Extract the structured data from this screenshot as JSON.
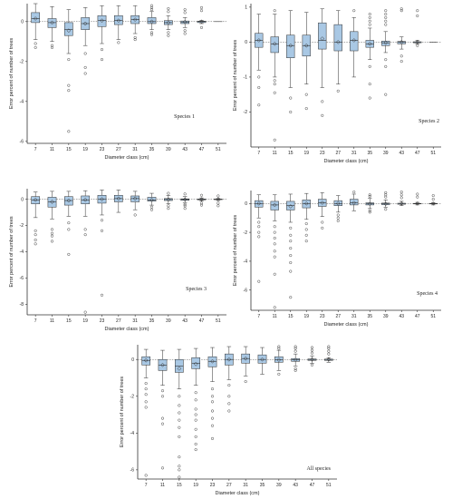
{
  "colors": {
    "box_fill": "#a9c8e4",
    "stroke": "#2f2f2f",
    "background": "#ffffff"
  },
  "chart_data": [
    {
      "type": "box",
      "label": "Species 1",
      "xlabel": "Diameter class (cm)",
      "ylabel": "Error percent of number of trees",
      "categories": [
        "7",
        "11",
        "15",
        "19",
        "23",
        "27",
        "31",
        "35",
        "39",
        "43",
        "47",
        "51"
      ],
      "x_ticks": [
        "7",
        "11",
        "15",
        "19",
        "23",
        "27",
        "31",
        "35",
        "39",
        "43",
        "47",
        "51"
      ],
      "y_ticks": [
        -6,
        -4,
        -2,
        0
      ],
      "ylim": [
        -6.1,
        0.9
      ],
      "boxes": [
        {
          "cat": "7",
          "q1": -0.05,
          "med": 0.15,
          "q3": 0.45,
          "lo": -0.9,
          "hi": 0.9,
          "mean": 0.15,
          "out": [
            -1.1,
            -1.3
          ]
        },
        {
          "cat": "11",
          "q1": -0.3,
          "med": -0.05,
          "q3": 0.15,
          "lo": -1.0,
          "hi": 0.75,
          "mean": -0.05,
          "out": [
            -1.2,
            -1.3
          ]
        },
        {
          "cat": "15",
          "q1": -0.7,
          "med": -0.4,
          "q3": -0.05,
          "lo": -1.6,
          "hi": 0.6,
          "mean": -0.45,
          "out": [
            -1.9,
            -3.2,
            -3.45,
            -5.5
          ]
        },
        {
          "cat": "19",
          "q1": -0.4,
          "med": -0.1,
          "q3": 0.2,
          "lo": -1.2,
          "hi": 0.7,
          "mean": -0.1,
          "out": [
            -1.6,
            -2.3,
            -2.6
          ]
        },
        {
          "cat": "23",
          "q1": -0.25,
          "med": 0.05,
          "q3": 0.3,
          "lo": -1.1,
          "hi": 0.8,
          "mean": 0.05,
          "out": [
            -1.4,
            -1.9
          ]
        },
        {
          "cat": "27",
          "q1": -0.15,
          "med": 0.05,
          "q3": 0.3,
          "lo": -0.9,
          "hi": 0.8,
          "mean": 0.05,
          "out": [
            -1.05
          ]
        },
        {
          "cat": "31",
          "q1": -0.1,
          "med": 0.1,
          "q3": 0.3,
          "lo": -0.6,
          "hi": 0.8,
          "mean": 0.1,
          "out": [
            -0.8,
            -0.9
          ]
        },
        {
          "cat": "35",
          "q1": -0.1,
          "med": 0.0,
          "q3": 0.2,
          "lo": -0.4,
          "hi": 0.5,
          "mean": 0.0,
          "out": [
            0.6,
            0.7,
            0.8,
            -0.55,
            -0.65
          ]
        },
        {
          "cat": "39",
          "q1": -0.15,
          "med": -0.05,
          "q3": 0.05,
          "lo": -0.4,
          "hi": 0.3,
          "mean": -0.05,
          "out": [
            0.5,
            0.65,
            -0.55,
            -0.7
          ]
        },
        {
          "cat": "43",
          "q1": -0.1,
          "med": -0.02,
          "q3": 0.03,
          "lo": -0.3,
          "hi": 0.2,
          "mean": -0.02,
          "out": [
            0.45,
            0.6,
            -0.45,
            -0.6
          ]
        },
        {
          "cat": "47",
          "q1": -0.05,
          "med": 0.0,
          "q3": 0.02,
          "lo": -0.1,
          "hi": 0.05,
          "mean": 0.0,
          "out": [
            0.55,
            0.7,
            -0.3
          ]
        },
        {
          "cat": "51",
          "q1": 0,
          "med": 0,
          "q3": 0,
          "lo": 0,
          "hi": 0,
          "mean": 0,
          "out": []
        }
      ]
    },
    {
      "type": "box",
      "label": "Species 2",
      "xlabel": "Diameter class (cm)",
      "ylabel": "Error percent of number of trees",
      "categories": [
        "7",
        "11",
        "15",
        "19",
        "23",
        "27",
        "31",
        "35",
        "39",
        "43",
        "47",
        "51"
      ],
      "x_ticks": [
        "7",
        "11",
        "15",
        "19",
        "23",
        "27",
        "31",
        "35",
        "39",
        "43",
        "47",
        "51"
      ],
      "y_ticks": [
        -2,
        -1,
        0,
        1
      ],
      "ylim": [
        -3.0,
        1.1
      ],
      "boxes": [
        {
          "cat": "7",
          "q1": -0.15,
          "med": 0.05,
          "q3": 0.25,
          "lo": -0.8,
          "hi": 0.8,
          "mean": 0.05,
          "out": [
            -1.0,
            -1.3,
            -1.8
          ]
        },
        {
          "cat": "11",
          "q1": -0.3,
          "med": -0.05,
          "q3": 0.15,
          "lo": -1.0,
          "hi": 0.8,
          "mean": -0.05,
          "out": [
            -1.1,
            -1.2,
            -1.45,
            0.9,
            -2.8
          ]
        },
        {
          "cat": "15",
          "q1": -0.45,
          "med": -0.1,
          "q3": 0.2,
          "lo": -1.3,
          "hi": 0.9,
          "mean": -0.1,
          "out": [
            -1.6,
            -2.0
          ]
        },
        {
          "cat": "19",
          "q1": -0.4,
          "med": -0.1,
          "q3": 0.2,
          "lo": -1.2,
          "hi": 0.85,
          "mean": -0.1,
          "out": [
            -1.5,
            -1.9
          ]
        },
        {
          "cat": "23",
          "q1": -0.2,
          "med": 0.05,
          "q3": 0.55,
          "lo": -1.3,
          "hi": 0.95,
          "mean": 0.1,
          "out": [
            -1.7,
            -2.1
          ]
        },
        {
          "cat": "27",
          "q1": -0.25,
          "med": 0.0,
          "q3": 0.5,
          "lo": -1.2,
          "hi": 0.9,
          "mean": 0.0,
          "out": [
            -1.4
          ]
        },
        {
          "cat": "31",
          "q1": -0.25,
          "med": 0.05,
          "q3": 0.3,
          "lo": -1.0,
          "hi": 0.7,
          "mean": 0.05,
          "out": [
            0.9
          ]
        },
        {
          "cat": "35",
          "q1": -0.15,
          "med": -0.05,
          "q3": 0.05,
          "lo": -0.5,
          "hi": 0.4,
          "mean": -0.05,
          "out": [
            0.5,
            0.6,
            0.7,
            0.8,
            -0.7,
            -1.2,
            -1.6
          ]
        },
        {
          "cat": "39",
          "q1": -0.1,
          "med": -0.02,
          "q3": 0.03,
          "lo": -0.3,
          "hi": 0.3,
          "mean": -0.02,
          "out": [
            0.5,
            0.6,
            0.7,
            0.8,
            0.9,
            -0.5,
            -0.7,
            -1.5
          ]
        },
        {
          "cat": "43",
          "q1": -0.05,
          "med": 0.0,
          "q3": 0.02,
          "lo": -0.2,
          "hi": 0.15,
          "mean": 0.0,
          "out": [
            0.9,
            0.95,
            -0.4,
            -0.55
          ]
        },
        {
          "cat": "47",
          "q1": -0.02,
          "med": 0.0,
          "q3": 0.01,
          "lo": -0.05,
          "hi": 0.05,
          "mean": 0.0,
          "out": [
            0.75,
            0.9,
            -0.1
          ]
        },
        {
          "cat": "51",
          "q1": 0,
          "med": 0,
          "q3": 0,
          "lo": 0,
          "hi": 0,
          "mean": 0,
          "out": []
        }
      ]
    },
    {
      "type": "box",
      "label": "Species 3",
      "xlabel": "Diameter class (cm)",
      "ylabel": "Error percent of number of trees",
      "categories": [
        "7",
        "11",
        "15",
        "19",
        "23",
        "27",
        "31",
        "35",
        "39",
        "43",
        "47",
        "51"
      ],
      "x_ticks": [
        "7",
        "11",
        "15",
        "19",
        "23",
        "27",
        "31",
        "35",
        "39",
        "43",
        "47",
        "51"
      ],
      "y_ticks": [
        -8,
        -6,
        -4,
        -2,
        0
      ],
      "ylim": [
        -8.8,
        0.8
      ],
      "boxes": [
        {
          "cat": "7",
          "q1": -0.35,
          "med": -0.05,
          "q3": 0.2,
          "lo": -1.4,
          "hi": 0.55,
          "mean": -0.05,
          "out": [
            -2.4,
            -2.7,
            -3.1,
            -3.4
          ]
        },
        {
          "cat": "11",
          "q1": -0.6,
          "med": -0.2,
          "q3": 0.15,
          "lo": -1.5,
          "hi": 0.6,
          "mean": -0.2,
          "out": [
            -2.3,
            -2.6,
            -2.8,
            -3.2
          ]
        },
        {
          "cat": "15",
          "q1": -0.45,
          "med": -0.1,
          "q3": 0.2,
          "lo": -1.3,
          "hi": 0.6,
          "mean": -0.1,
          "out": [
            -1.8,
            -2.3,
            -4.2
          ]
        },
        {
          "cat": "19",
          "q1": -0.35,
          "med": -0.05,
          "q3": 0.25,
          "lo": -1.3,
          "hi": 0.65,
          "mean": -0.05,
          "out": [
            -2.3,
            -2.7,
            -8.6
          ]
        },
        {
          "cat": "23",
          "q1": -0.3,
          "med": 0.0,
          "q3": 0.3,
          "lo": -1.2,
          "hi": 0.7,
          "mean": 0.0,
          "out": [
            -1.6,
            -2.4,
            -7.3
          ]
        },
        {
          "cat": "27",
          "q1": -0.2,
          "med": 0.05,
          "q3": 0.3,
          "lo": -1.0,
          "hi": 0.7,
          "mean": 0.05,
          "out": []
        },
        {
          "cat": "31",
          "q1": -0.2,
          "med": 0.05,
          "q3": 0.25,
          "lo": -0.8,
          "hi": 0.6,
          "mean": 0.05,
          "out": [
            -1.2
          ]
        },
        {
          "cat": "35",
          "q1": -0.15,
          "med": -0.05,
          "q3": 0.15,
          "lo": -0.45,
          "hi": 0.45,
          "mean": -0.05,
          "out": [
            -0.6,
            -0.8
          ]
        },
        {
          "cat": "39",
          "q1": -0.1,
          "med": -0.02,
          "q3": 0.05,
          "lo": -0.35,
          "hi": 0.3,
          "mean": -0.02,
          "out": [
            -0.5,
            -0.7,
            0.45
          ]
        },
        {
          "cat": "43",
          "q1": -0.08,
          "med": -0.02,
          "q3": 0.03,
          "lo": -0.25,
          "hi": 0.2,
          "mean": -0.02,
          "out": [
            -0.4,
            -0.5,
            -0.7,
            0.4
          ]
        },
        {
          "cat": "47",
          "q1": -0.05,
          "med": 0.0,
          "q3": 0.02,
          "lo": -0.15,
          "hi": 0.1,
          "mean": 0.0,
          "out": [
            -0.3,
            -0.45,
            0.3
          ]
        },
        {
          "cat": "51",
          "q1": -0.03,
          "med": 0.0,
          "q3": 0.01,
          "lo": -0.1,
          "hi": 0.05,
          "mean": 0.0,
          "out": [
            -0.3,
            -0.5,
            0.25
          ]
        }
      ]
    },
    {
      "type": "box",
      "label": "Species 4",
      "xlabel": "Diameter class (cm)",
      "ylabel": "Error percent of number of trees",
      "categories": [
        "7",
        "11",
        "15",
        "19",
        "23",
        "27",
        "31",
        "35",
        "39",
        "43",
        "47",
        "51"
      ],
      "x_ticks": [
        "7",
        "11",
        "15",
        "19",
        "23",
        "27",
        "31",
        "35",
        "39",
        "43",
        "47",
        "51"
      ],
      "y_ticks": [
        -6,
        -4,
        -2,
        0
      ],
      "ylim": [
        -7.4,
        0.9
      ],
      "boxes": [
        {
          "cat": "7",
          "q1": -0.25,
          "med": 0.0,
          "q3": 0.2,
          "lo": -1.0,
          "hi": 0.6,
          "mean": 0.0,
          "out": [
            -1.3,
            -1.6,
            -2.0,
            -2.3,
            -5.4
          ]
        },
        {
          "cat": "11",
          "q1": -0.45,
          "med": -0.1,
          "q3": 0.15,
          "lo": -1.2,
          "hi": 0.6,
          "mean": -0.1,
          "out": [
            -1.6,
            -2.0,
            -2.4,
            -2.8,
            -3.3,
            -3.7,
            -4.9,
            -7.2
          ]
        },
        {
          "cat": "15",
          "q1": -0.45,
          "med": -0.15,
          "q3": 0.15,
          "lo": -1.3,
          "hi": 0.65,
          "mean": -0.2,
          "out": [
            -1.7,
            -2.2,
            -2.6,
            -3.1,
            -3.6,
            -4.1,
            -4.7,
            -6.5
          ]
        },
        {
          "cat": "19",
          "q1": -0.3,
          "med": 0.0,
          "q3": 0.25,
          "lo": -1.1,
          "hi": 0.7,
          "mean": 0.0,
          "out": [
            -1.4,
            -1.8,
            -2.2,
            -2.6
          ]
        },
        {
          "cat": "23",
          "q1": -0.2,
          "med": 0.05,
          "q3": 0.3,
          "lo": -0.9,
          "hi": 0.75,
          "mean": 0.05,
          "out": [
            -1.3,
            -1.7
          ]
        },
        {
          "cat": "27",
          "q1": -0.15,
          "med": 0.0,
          "q3": 0.2,
          "lo": -0.6,
          "hi": 0.55,
          "mean": 0.0,
          "out": [
            -0.8,
            -1.0,
            -1.2
          ]
        },
        {
          "cat": "31",
          "q1": -0.1,
          "med": 0.05,
          "q3": 0.3,
          "lo": -0.5,
          "hi": 0.65,
          "mean": 0.05,
          "out": [
            0.8
          ]
        },
        {
          "cat": "35",
          "q1": -0.1,
          "med": -0.02,
          "q3": 0.05,
          "lo": -0.35,
          "hi": 0.35,
          "mean": -0.02,
          "out": [
            0.5,
            0.6,
            -0.5,
            -0.6
          ]
        },
        {
          "cat": "39",
          "q1": -0.08,
          "med": -0.02,
          "q3": 0.03,
          "lo": -0.25,
          "hi": 0.25,
          "mean": -0.02,
          "out": [
            0.45,
            0.6,
            0.75,
            -0.4
          ]
        },
        {
          "cat": "43",
          "q1": -0.05,
          "med": 0.0,
          "q3": 0.02,
          "lo": -0.15,
          "hi": 0.15,
          "mean": 0.0,
          "out": [
            0.4,
            0.6,
            0.8
          ]
        },
        {
          "cat": "47",
          "q1": -0.03,
          "med": 0.0,
          "q3": 0.01,
          "lo": -0.1,
          "hi": 0.08,
          "mean": 0.0,
          "out": [
            0.45,
            0.65
          ]
        },
        {
          "cat": "51",
          "q1": -0.03,
          "med": 0.0,
          "q3": 0.01,
          "lo": -0.1,
          "hi": 0.05,
          "mean": 0.0,
          "out": [
            0.3,
            0.55
          ]
        }
      ]
    },
    {
      "type": "box",
      "label": "All species",
      "xlabel": "Diameter class (cm)",
      "ylabel": "Error percent of number of trees",
      "categories": [
        "7",
        "11",
        "15",
        "19",
        "23",
        "27",
        "31",
        "35",
        "39",
        "43",
        "47",
        "51"
      ],
      "x_ticks": [
        "7",
        "11",
        "15",
        "19",
        "23",
        "27",
        "31",
        "35",
        "39",
        "43",
        "47",
        "51"
      ],
      "y_ticks": [
        -6,
        -4,
        -2,
        0
      ],
      "ylim": [
        -6.5,
        0.8
      ],
      "boxes": [
        {
          "cat": "7",
          "q1": -0.3,
          "med": -0.05,
          "q3": 0.15,
          "lo": -1.0,
          "hi": 0.55,
          "mean": -0.05,
          "out": [
            -1.3,
            -1.6,
            -1.9,
            -2.3,
            -2.6,
            -6.3
          ]
        },
        {
          "cat": "11",
          "q1": -0.6,
          "med": -0.3,
          "q3": 0.0,
          "lo": -1.4,
          "hi": 0.5,
          "mean": -0.3,
          "out": [
            -1.7,
            -2.0,
            -3.2,
            -3.5,
            -5.9
          ]
        },
        {
          "cat": "15",
          "q1": -0.7,
          "med": -0.35,
          "q3": 0.0,
          "lo": -1.6,
          "hi": 0.55,
          "mean": -0.5,
          "out": [
            -2.0,
            -2.5,
            -2.9,
            -3.3,
            -3.7,
            -4.2,
            -5.3,
            -5.8,
            -6.0,
            -6.4
          ]
        },
        {
          "cat": "19",
          "q1": -0.5,
          "med": -0.2,
          "q3": 0.1,
          "lo": -1.4,
          "hi": 0.6,
          "mean": -0.25,
          "out": [
            -1.8,
            -2.2,
            -2.7,
            -3.0,
            -3.3,
            -3.8,
            -4.2,
            -4.6,
            -4.9
          ]
        },
        {
          "cat": "23",
          "q1": -0.4,
          "med": -0.1,
          "q3": 0.15,
          "lo": -1.2,
          "hi": 0.65,
          "mean": -0.1,
          "out": [
            -1.6,
            -2.0,
            -2.3,
            -2.8,
            -3.2,
            -3.6,
            -4.3
          ]
        },
        {
          "cat": "27",
          "q1": -0.3,
          "med": 0.0,
          "q3": 0.3,
          "lo": -1.1,
          "hi": 0.7,
          "mean": 0.0,
          "out": [
            -1.4,
            -2.0,
            -2.4,
            -2.8
          ]
        },
        {
          "cat": "31",
          "q1": -0.2,
          "med": 0.05,
          "q3": 0.3,
          "lo": -0.9,
          "hi": 0.7,
          "mean": 0.05,
          "out": [
            -1.2
          ]
        },
        {
          "cat": "35",
          "q1": -0.2,
          "med": 0.0,
          "q3": 0.25,
          "lo": -0.8,
          "hi": 0.65,
          "mean": 0.0,
          "out": []
        },
        {
          "cat": "39",
          "q1": -0.15,
          "med": -0.02,
          "q3": 0.15,
          "lo": -0.6,
          "hi": 0.5,
          "mean": -0.02,
          "out": [
            0.6,
            0.7,
            -0.8
          ]
        },
        {
          "cat": "43",
          "q1": -0.1,
          "med": -0.02,
          "q3": 0.05,
          "lo": -0.35,
          "hi": 0.3,
          "mean": -0.02,
          "out": [
            0.45,
            0.6,
            0.7,
            -0.5,
            -0.6
          ]
        },
        {
          "cat": "47",
          "q1": -0.05,
          "med": 0.0,
          "q3": 0.03,
          "lo": -0.2,
          "hi": 0.2,
          "mean": 0.0,
          "out": [
            0.35,
            0.5,
            0.65,
            -0.3
          ]
        },
        {
          "cat": "51",
          "q1": -0.05,
          "med": 0.0,
          "q3": 0.02,
          "lo": -0.15,
          "hi": 0.1,
          "mean": 0.0,
          "out": [
            0.3,
            0.45,
            0.6,
            0.7
          ]
        }
      ]
    }
  ]
}
